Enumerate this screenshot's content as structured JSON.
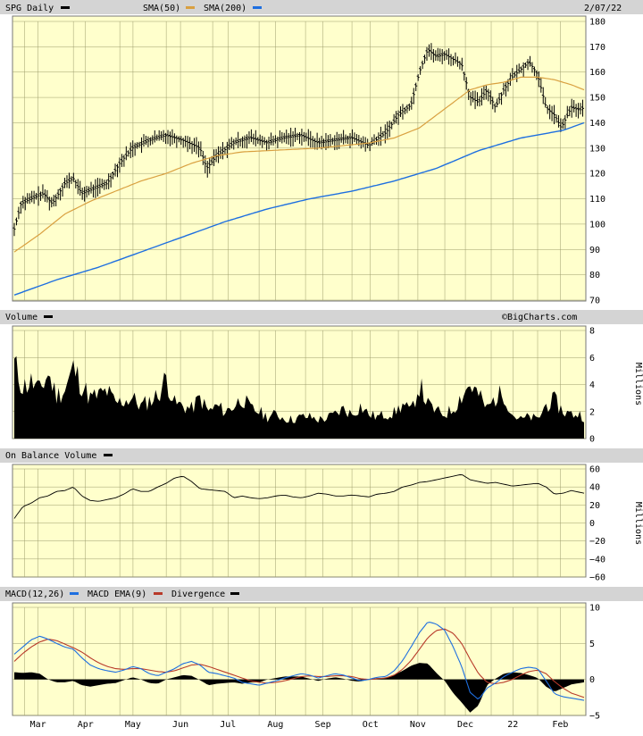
{
  "header": {
    "ticker": "SPG Daily",
    "sma50": "SMA(50)",
    "sma200": "SMA(200)",
    "date": "2/07/22",
    "credit": "©BigCharts.com"
  },
  "colors": {
    "bg": "#ffffcc",
    "sma50": "#d9a040",
    "sma200": "#1e6fe0",
    "macd": "#1e6fe0",
    "ema": "#b83a2a",
    "bars": "#000000"
  },
  "x_labels": [
    "Mar",
    "Apr",
    "May",
    "Jun",
    "Jul",
    "Aug",
    "Sep",
    "Oct",
    "Nov",
    "Dec",
    "22",
    "Feb"
  ],
  "chart_data": [
    {
      "type": "line",
      "title": "SPG Daily",
      "legend": [
        "SMA(50)",
        "SMA(200)"
      ],
      "ylim": [
        70,
        180
      ],
      "yticks": [
        70,
        80,
        90,
        100,
        110,
        120,
        130,
        140,
        150,
        160,
        170,
        180
      ],
      "price_keypoints": [
        [
          0,
          98
        ],
        [
          0.8,
          108
        ],
        [
          2,
          110
        ],
        [
          3.5,
          112
        ],
        [
          4.5,
          108
        ],
        [
          6,
          116
        ],
        [
          7,
          118
        ],
        [
          8,
          112
        ],
        [
          9.5,
          114
        ],
        [
          11,
          116
        ],
        [
          12.5,
          124
        ],
        [
          14,
          130
        ],
        [
          16,
          133
        ],
        [
          18,
          135
        ],
        [
          20,
          133
        ],
        [
          22,
          130
        ],
        [
          22.8,
          122
        ],
        [
          24,
          127
        ],
        [
          26,
          132
        ],
        [
          28,
          134
        ],
        [
          30,
          132
        ],
        [
          32,
          134
        ],
        [
          34,
          135
        ],
        [
          36,
          132
        ],
        [
          38,
          133
        ],
        [
          40,
          134
        ],
        [
          42,
          131
        ],
        [
          44,
          136
        ],
        [
          45.5,
          143
        ],
        [
          47,
          147
        ],
        [
          48,
          160
        ],
        [
          49,
          169
        ],
        [
          50,
          166
        ],
        [
          51,
          167
        ],
        [
          52,
          165
        ],
        [
          53,
          163
        ],
        [
          54,
          150
        ],
        [
          55,
          148
        ],
        [
          56,
          153
        ],
        [
          57,
          146
        ],
        [
          58,
          153
        ],
        [
          59,
          158
        ],
        [
          60,
          161
        ],
        [
          61,
          164
        ],
        [
          62,
          159
        ],
        [
          63,
          146
        ],
        [
          64,
          143
        ],
        [
          64.8,
          138
        ],
        [
          66,
          146
        ],
        [
          67,
          145
        ],
        [
          67.5,
          146
        ]
      ],
      "sma50_keypoints": [
        [
          0,
          89
        ],
        [
          3,
          96
        ],
        [
          6,
          104
        ],
        [
          9,
          109
        ],
        [
          12,
          113
        ],
        [
          15,
          117
        ],
        [
          18,
          120
        ],
        [
          21,
          124
        ],
        [
          24,
          127
        ],
        [
          27,
          128.5
        ],
        [
          30,
          129
        ],
        [
          33,
          129.5
        ],
        [
          36,
          130
        ],
        [
          39,
          131
        ],
        [
          42,
          132
        ],
        [
          45,
          134
        ],
        [
          48,
          138
        ],
        [
          50,
          143
        ],
        [
          52,
          148
        ],
        [
          54,
          153
        ],
        [
          56,
          155
        ],
        [
          58,
          156
        ],
        [
          60,
          158
        ],
        [
          62,
          158
        ],
        [
          64,
          157
        ],
        [
          66,
          155
        ],
        [
          67.5,
          153
        ]
      ],
      "sma200_keypoints": [
        [
          0,
          72
        ],
        [
          5,
          78
        ],
        [
          10,
          83
        ],
        [
          15,
          89
        ],
        [
          20,
          95
        ],
        [
          25,
          101
        ],
        [
          30,
          106
        ],
        [
          35,
          110
        ],
        [
          40,
          113
        ],
        [
          45,
          117
        ],
        [
          50,
          122
        ],
        [
          55,
          129
        ],
        [
          60,
          134
        ],
        [
          65,
          137
        ],
        [
          67.5,
          140
        ]
      ]
    },
    {
      "type": "bar",
      "title": "Volume",
      "ylabel": "Millions",
      "ylim": [
        0,
        8
      ],
      "yticks": [
        0,
        2,
        4,
        6,
        8
      ],
      "keypoints": [
        [
          0,
          5.5
        ],
        [
          1,
          3.8
        ],
        [
          2,
          4.2
        ],
        [
          3,
          3.5
        ],
        [
          4,
          4.8
        ],
        [
          5,
          3.2
        ],
        [
          6,
          3.6
        ],
        [
          7,
          5.2
        ],
        [
          8,
          4.0
        ],
        [
          9,
          3.0
        ],
        [
          10,
          3.2
        ],
        [
          11,
          3.5
        ],
        [
          12,
          2.6
        ],
        [
          13,
          2.8
        ],
        [
          14,
          3.0
        ],
        [
          15,
          2.4
        ],
        [
          16,
          2.8
        ],
        [
          17,
          3.2
        ],
        [
          18,
          4.5
        ],
        [
          19,
          2.6
        ],
        [
          20,
          2.4
        ],
        [
          21,
          2.2
        ],
        [
          22,
          3.0
        ],
        [
          23,
          2.0
        ],
        [
          24,
          2.4
        ],
        [
          25,
          2.0
        ],
        [
          26,
          2.4
        ],
        [
          27,
          3.0
        ],
        [
          28,
          2.2
        ],
        [
          29,
          2.0
        ],
        [
          30,
          1.6
        ],
        [
          31,
          1.8
        ],
        [
          32,
          1.5
        ],
        [
          33,
          1.4
        ],
        [
          34,
          1.6
        ],
        [
          35,
          1.6
        ],
        [
          36,
          1.4
        ],
        [
          37,
          1.5
        ],
        [
          38,
          1.8
        ],
        [
          39,
          2.2
        ],
        [
          40,
          1.8
        ],
        [
          41,
          2.4
        ],
        [
          42,
          1.8
        ],
        [
          43,
          1.6
        ],
        [
          44,
          1.8
        ],
        [
          45,
          1.9
        ],
        [
          46,
          2.5
        ],
        [
          47,
          2.0
        ],
        [
          48,
          4.0
        ],
        [
          49,
          2.5
        ],
        [
          50,
          2.0
        ],
        [
          51,
          1.8
        ],
        [
          52,
          2.2
        ],
        [
          53,
          3.2
        ],
        [
          54,
          4.0
        ],
        [
          55,
          3.2
        ],
        [
          56,
          2.2
        ],
        [
          57,
          3.0
        ],
        [
          58,
          3.4
        ],
        [
          59,
          1.8
        ],
        [
          60,
          1.4
        ],
        [
          61,
          1.6
        ],
        [
          62,
          1.4
        ],
        [
          63,
          2.5
        ],
        [
          64,
          2.8
        ],
        [
          65,
          2.0
        ],
        [
          66,
          1.8
        ],
        [
          67,
          1.8
        ],
        [
          67.5,
          1.6
        ]
      ]
    },
    {
      "type": "line",
      "title": "On Balance Volume",
      "ylabel": "Millions",
      "ylim": [
        -60,
        60
      ],
      "yticks": [
        -60,
        -40,
        -20,
        0,
        20,
        40,
        60
      ],
      "keypoints": [
        [
          0,
          5
        ],
        [
          1,
          18
        ],
        [
          2,
          22
        ],
        [
          3,
          28
        ],
        [
          4,
          30
        ],
        [
          5,
          35
        ],
        [
          6,
          36
        ],
        [
          7,
          40
        ],
        [
          8,
          30
        ],
        [
          9,
          25
        ],
        [
          10,
          24
        ],
        [
          11,
          26
        ],
        [
          12,
          28
        ],
        [
          13,
          32
        ],
        [
          14,
          38
        ],
        [
          15,
          35
        ],
        [
          16,
          35
        ],
        [
          17,
          40
        ],
        [
          18,
          44
        ],
        [
          19,
          50
        ],
        [
          20,
          52
        ],
        [
          21,
          46
        ],
        [
          22,
          38
        ],
        [
          23,
          37
        ],
        [
          24,
          36
        ],
        [
          25,
          35
        ],
        [
          26,
          28
        ],
        [
          27,
          30
        ],
        [
          28,
          28
        ],
        [
          29,
          27
        ],
        [
          30,
          28
        ],
        [
          31,
          30
        ],
        [
          32,
          31
        ],
        [
          33,
          29
        ],
        [
          34,
          28
        ],
        [
          35,
          30
        ],
        [
          36,
          33
        ],
        [
          37,
          32
        ],
        [
          38,
          30
        ],
        [
          39,
          30
        ],
        [
          40,
          31
        ],
        [
          41,
          30
        ],
        [
          42,
          29
        ],
        [
          43,
          32
        ],
        [
          44,
          33
        ],
        [
          45,
          35
        ],
        [
          46,
          40
        ],
        [
          47,
          42
        ],
        [
          48,
          45
        ],
        [
          49,
          46
        ],
        [
          50,
          48
        ],
        [
          51,
          50
        ],
        [
          52,
          52
        ],
        [
          53,
          54
        ],
        [
          54,
          48
        ],
        [
          55,
          46
        ],
        [
          56,
          44
        ],
        [
          57,
          45
        ],
        [
          58,
          43
        ],
        [
          59,
          41
        ],
        [
          60,
          42
        ],
        [
          61,
          43
        ],
        [
          62,
          44
        ],
        [
          63,
          40
        ],
        [
          64,
          32
        ],
        [
          65,
          33
        ],
        [
          66,
          36
        ],
        [
          67,
          34
        ],
        [
          67.5,
          33
        ]
      ]
    },
    {
      "type": "line",
      "title": "MACD(12,26)",
      "legend": [
        "MACD(12,26)",
        "MACD EMA(9)",
        "Divergence"
      ],
      "ylim": [
        -5,
        10
      ],
      "yticks": [
        -5,
        0,
        5,
        10
      ],
      "macd_keypoints": [
        [
          0,
          3.5
        ],
        [
          1,
          4.5
        ],
        [
          2,
          5.5
        ],
        [
          3,
          6.0
        ],
        [
          4,
          5.6
        ],
        [
          5,
          5.0
        ],
        [
          6,
          4.5
        ],
        [
          7,
          4.2
        ],
        [
          8,
          3.0
        ],
        [
          9,
          2.0
        ],
        [
          10,
          1.5
        ],
        [
          11,
          1.2
        ],
        [
          12,
          1.0
        ],
        [
          13,
          1.3
        ],
        [
          14,
          1.8
        ],
        [
          15,
          1.5
        ],
        [
          16,
          0.8
        ],
        [
          17,
          0.5
        ],
        [
          18,
          1.0
        ],
        [
          19,
          1.5
        ],
        [
          20,
          2.2
        ],
        [
          21,
          2.5
        ],
        [
          22,
          2.0
        ],
        [
          23,
          1.0
        ],
        [
          24,
          0.8
        ],
        [
          25,
          0.5
        ],
        [
          26,
          0.2
        ],
        [
          27,
          -0.4
        ],
        [
          28,
          -0.6
        ],
        [
          29,
          -0.8
        ],
        [
          30,
          -0.5
        ],
        [
          31,
          -0.2
        ],
        [
          32,
          0.2
        ],
        [
          33,
          0.5
        ],
        [
          34,
          0.8
        ],
        [
          35,
          0.6
        ],
        [
          36,
          0.2
        ],
        [
          37,
          0.5
        ],
        [
          38,
          0.8
        ],
        [
          39,
          0.6
        ],
        [
          40,
          0.2
        ],
        [
          41,
          -0.2
        ],
        [
          42,
          0.0
        ],
        [
          43,
          0.3
        ],
        [
          44,
          0.4
        ],
        [
          45,
          1.2
        ],
        [
          46,
          2.6
        ],
        [
          47,
          4.5
        ],
        [
          48,
          6.5
        ],
        [
          49,
          8.0
        ],
        [
          50,
          7.7
        ],
        [
          51,
          6.8
        ],
        [
          52,
          4.5
        ],
        [
          53,
          1.8
        ],
        [
          54,
          -1.8
        ],
        [
          55,
          -2.8
        ],
        [
          56,
          -1.2
        ],
        [
          57,
          -0.5
        ],
        [
          58,
          0.4
        ],
        [
          59,
          1.0
        ],
        [
          60,
          1.5
        ],
        [
          61,
          1.7
        ],
        [
          62,
          1.5
        ],
        [
          63,
          -0.2
        ],
        [
          64,
          -2.0
        ],
        [
          65,
          -2.4
        ],
        [
          66,
          -2.6
        ],
        [
          67,
          -2.8
        ],
        [
          67.5,
          -2.9
        ]
      ],
      "ema_keypoints": [
        [
          0,
          2.5
        ],
        [
          1,
          3.6
        ],
        [
          2,
          4.5
        ],
        [
          3,
          5.2
        ],
        [
          4,
          5.6
        ],
        [
          5,
          5.4
        ],
        [
          6,
          4.9
        ],
        [
          7,
          4.4
        ],
        [
          8,
          3.8
        ],
        [
          9,
          3.0
        ],
        [
          10,
          2.3
        ],
        [
          11,
          1.8
        ],
        [
          12,
          1.5
        ],
        [
          13,
          1.4
        ],
        [
          14,
          1.5
        ],
        [
          15,
          1.5
        ],
        [
          16,
          1.3
        ],
        [
          17,
          1.1
        ],
        [
          18,
          1.0
        ],
        [
          19,
          1.2
        ],
        [
          20,
          1.6
        ],
        [
          21,
          2.0
        ],
        [
          22,
          2.1
        ],
        [
          23,
          1.8
        ],
        [
          24,
          1.4
        ],
        [
          25,
          1.0
        ],
        [
          26,
          0.6
        ],
        [
          27,
          0.2
        ],
        [
          28,
          -0.2
        ],
        [
          29,
          -0.4
        ],
        [
          30,
          -0.5
        ],
        [
          31,
          -0.4
        ],
        [
          32,
          -0.2
        ],
        [
          33,
          0.1
        ],
        [
          34,
          0.4
        ],
        [
          35,
          0.5
        ],
        [
          36,
          0.4
        ],
        [
          37,
          0.4
        ],
        [
          38,
          0.5
        ],
        [
          39,
          0.5
        ],
        [
          40,
          0.4
        ],
        [
          41,
          0.1
        ],
        [
          42,
          0.0
        ],
        [
          43,
          0.1
        ],
        [
          44,
          0.2
        ],
        [
          45,
          0.6
        ],
        [
          46,
          1.4
        ],
        [
          47,
          2.6
        ],
        [
          48,
          4.2
        ],
        [
          49,
          5.8
        ],
        [
          50,
          6.8
        ],
        [
          51,
          7.0
        ],
        [
          52,
          6.4
        ],
        [
          53,
          5.0
        ],
        [
          54,
          2.8
        ],
        [
          55,
          0.8
        ],
        [
          56,
          -0.4
        ],
        [
          57,
          -0.6
        ],
        [
          58,
          -0.4
        ],
        [
          59,
          0.0
        ],
        [
          60,
          0.6
        ],
        [
          61,
          1.1
        ],
        [
          62,
          1.3
        ],
        [
          63,
          0.8
        ],
        [
          64,
          -0.3
        ],
        [
          65,
          -1.2
        ],
        [
          66,
          -1.9
        ],
        [
          67,
          -2.3
        ],
        [
          67.5,
          -2.5
        ]
      ]
    }
  ]
}
